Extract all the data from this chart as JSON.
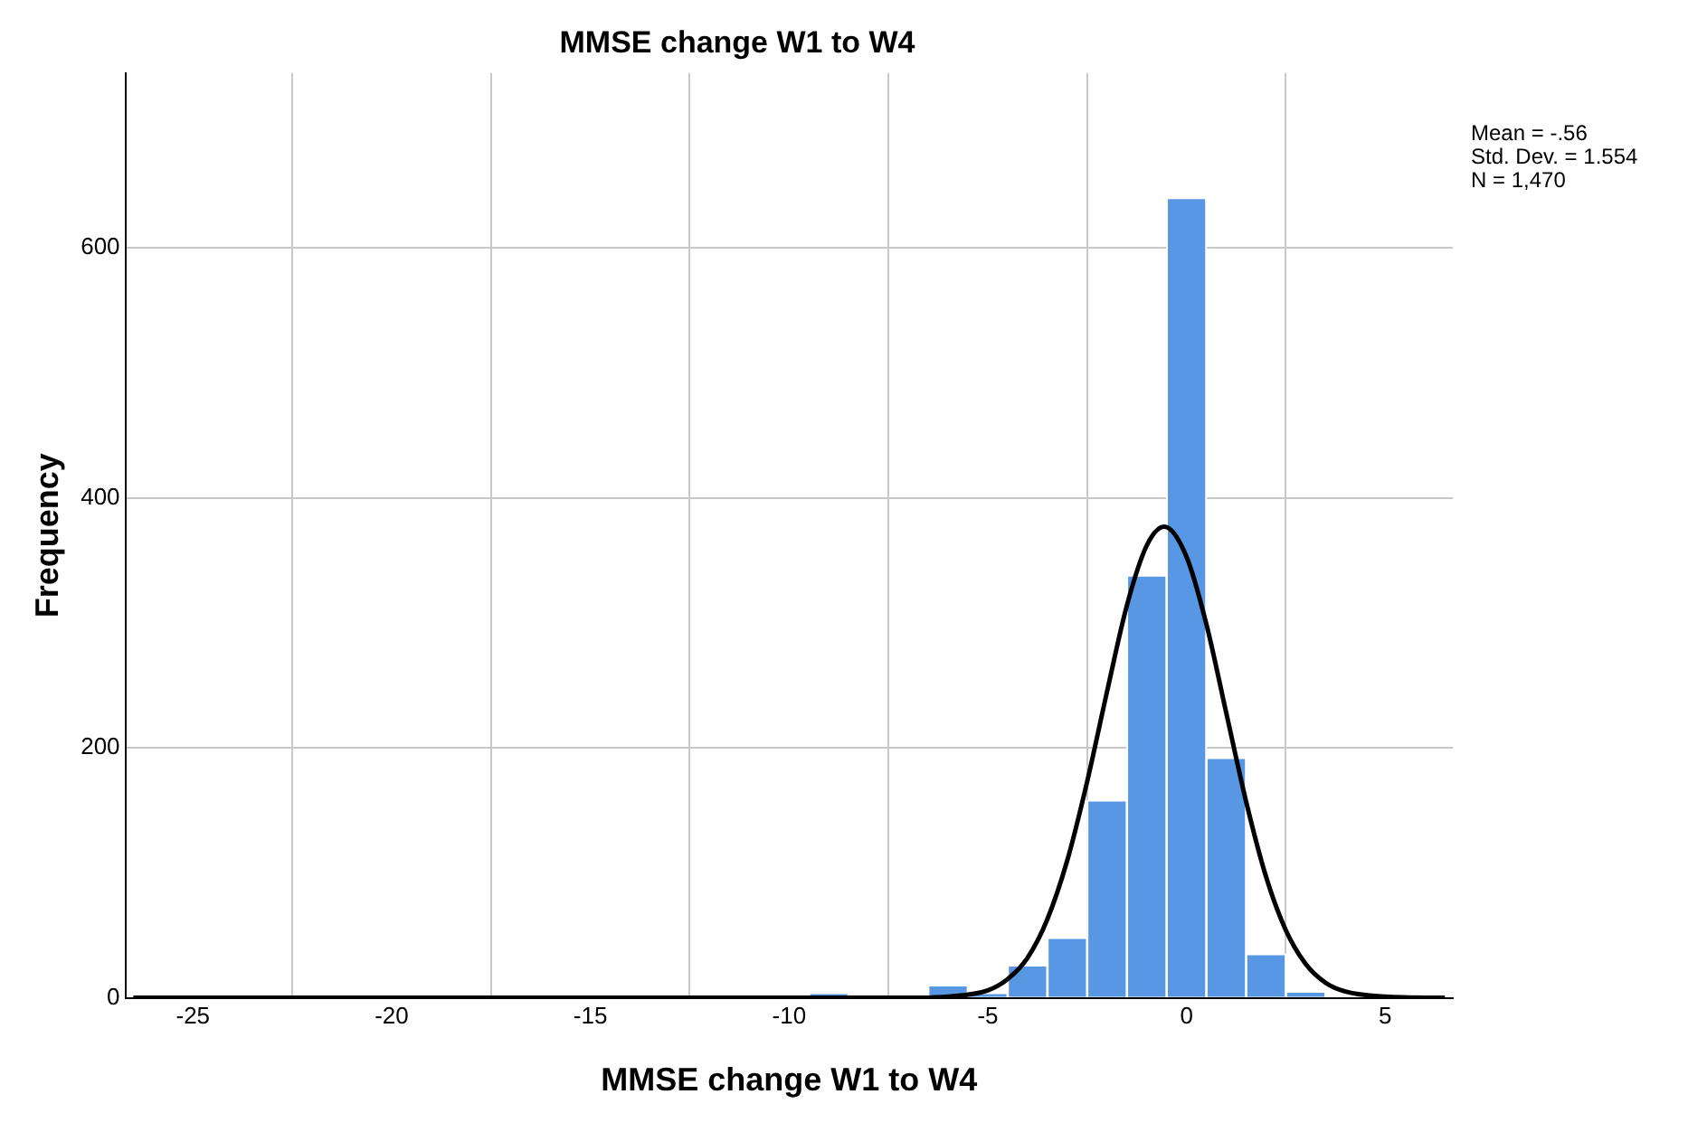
{
  "chart_data": {
    "type": "histogram",
    "title": "MMSE change W1 to W4",
    "xlabel": "MMSE change W1 to W4",
    "ylabel": "Frequency",
    "bins": [
      -9.5,
      -8.5,
      -7.5,
      -6.5,
      -5.5,
      -4.5,
      -3.5,
      -2.5,
      -1.5,
      -0.5,
      0.5,
      1.5,
      2.5,
      3.5
    ],
    "values": [
      4,
      0,
      0,
      10,
      4,
      26,
      48,
      158,
      338,
      640,
      192,
      35,
      5
    ],
    "color": "#5897e3",
    "series": [
      {
        "type": "line",
        "color": "#000000",
        "x": [
          -26.5,
          -10,
          -7,
          -6,
          -5,
          -4.5,
          -4,
          -3.5,
          -3,
          -2.5,
          -2,
          -1.5,
          -1,
          -0.56,
          0,
          0.5,
          1,
          1.5,
          2,
          2.5,
          3,
          3.5,
          4,
          5,
          6.5
        ],
        "values": [
          0,
          0,
          0,
          1,
          6,
          15,
          32,
          63,
          110,
          173,
          245,
          314,
          362,
          377,
          353,
          299,
          228,
          157,
          97,
          54,
          27,
          12,
          5,
          1,
          0
        ]
      }
    ],
    "xlim": [
      -26.7,
      6.7
    ],
    "xticks": [
      -25,
      -20,
      -15,
      -10,
      -5,
      0,
      5
    ],
    "ylim": [
      0,
      740
    ],
    "yticks": [
      0,
      200,
      400,
      600
    ],
    "grid": true,
    "legend": false,
    "marker": "none",
    "line_style": "solid",
    "annotations": [
      "Mean = -.56",
      "Std. Dev. = 1.554",
      "N = 1,470"
    ]
  }
}
